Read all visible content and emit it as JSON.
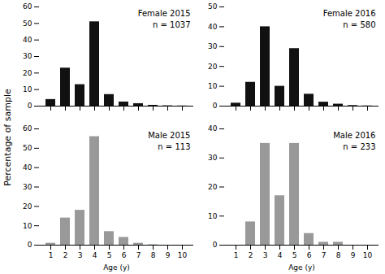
{
  "chart_data": [
    {
      "type": "bar",
      "annotations": [
        "Female 2015",
        "n = 1037"
      ],
      "categories": [
        1,
        2,
        3,
        4,
        5,
        6,
        7,
        8,
        9,
        10
      ],
      "values": [
        4,
        23,
        13,
        51,
        7,
        2.5,
        1.5,
        0.5,
        0.2,
        0.1
      ],
      "color": "#111111",
      "ylim": [
        0,
        60
      ],
      "yticks": [
        0,
        10,
        20,
        30,
        40,
        50,
        60
      ],
      "tick_labels": "y",
      "ylabel": "Percentage of sample"
    },
    {
      "type": "bar",
      "annotations": [
        "Female 2016",
        "n = 580"
      ],
      "categories": [
        1,
        2,
        3,
        4,
        5,
        6,
        7,
        8,
        9,
        10
      ],
      "values": [
        1.5,
        12,
        40,
        10,
        29,
        6,
        2,
        1,
        0.3,
        0.1
      ],
      "color": "#111111",
      "ylim": [
        0,
        50
      ],
      "yticks": [
        0,
        10,
        20,
        30,
        40,
        50
      ],
      "tick_labels": "y"
    },
    {
      "type": "bar",
      "annotations": [
        "Male 2015",
        "n = 113"
      ],
      "categories": [
        1,
        2,
        3,
        4,
        5,
        6,
        7,
        8,
        9,
        10
      ],
      "values": [
        1,
        14,
        18,
        56,
        7,
        4,
        1,
        0.2,
        0.0,
        0.0
      ],
      "color": "#999999",
      "ylim": [
        0,
        60
      ],
      "yticks": [
        0,
        10,
        20,
        30,
        40,
        50,
        60
      ],
      "xlabel": "Age (y)"
    },
    {
      "type": "bar",
      "annotations": [
        "Male 2016",
        "n = 233"
      ],
      "categories": [
        1,
        2,
        3,
        4,
        5,
        6,
        7,
        8,
        9,
        10
      ],
      "values": [
        0.0,
        8,
        35,
        17,
        35,
        4,
        1,
        1,
        0.0,
        0.0
      ],
      "color": "#999999",
      "ylim": [
        0,
        40
      ],
      "yticks": [
        0,
        10,
        20,
        30,
        40
      ],
      "xlabel": "Age (y)"
    }
  ]
}
